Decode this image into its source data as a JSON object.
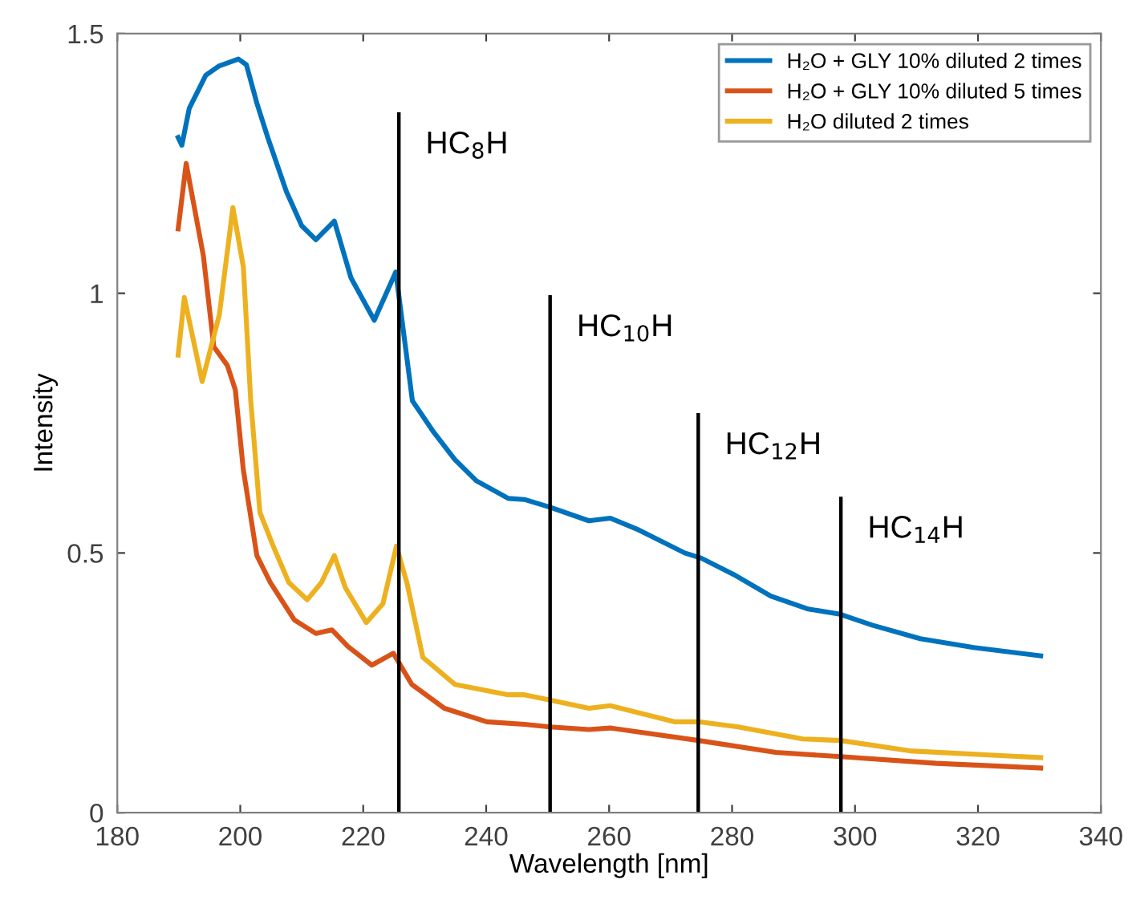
{
  "chart_data": {
    "type": "line",
    "xlabel": "Wavelength [nm]",
    "ylabel": "Intensity",
    "xlim": [
      180,
      340
    ],
    "ylim": [
      0,
      1.5
    ],
    "xticks": [
      180,
      200,
      220,
      240,
      260,
      280,
      300,
      320,
      340
    ],
    "yticks": [
      0,
      0.5,
      1,
      1.5
    ],
    "grid": false,
    "legend": "top right",
    "marker": "none",
    "line_style": "solid",
    "series": [
      {
        "name": "H₂O + GLY 10% diluted 2 times",
        "color": "#0072bd",
        "x": [
          189.9,
          190.5,
          191.7,
          194.4,
          196.6,
          199.7,
          201,
          202.7,
          204.5,
          207.5,
          210,
          212.3,
          215.3,
          218,
          221.8,
          225.3,
          228,
          231.5,
          234.9,
          238.4,
          243.6,
          246.2,
          250.4,
          256.7,
          260.2,
          264.5,
          272.3,
          275,
          280.2,
          286.3,
          292.4,
          297.6,
          302.8,
          310.6,
          319.3,
          330.2
        ],
        "values": [
          1.3,
          1.285,
          1.356,
          1.42,
          1.438,
          1.451,
          1.44,
          1.366,
          1.299,
          1.196,
          1.13,
          1.103,
          1.139,
          1.03,
          0.948,
          1.041,
          0.793,
          0.732,
          0.68,
          0.639,
          0.605,
          0.603,
          0.588,
          0.562,
          0.567,
          0.546,
          0.5,
          0.49,
          0.459,
          0.417,
          0.392,
          0.382,
          0.361,
          0.335,
          0.318,
          0.302
        ]
      },
      {
        "name": "H₂O + GLY 10% diluted 5 times",
        "color": "#d95319",
        "x": [
          189.9,
          191.2,
          194,
          195.7,
          197.9,
          199.2,
          200.5,
          202.7,
          204.9,
          208.8,
          212.3,
          214.9,
          217.5,
          221.4,
          224.9,
          227.9,
          233.2,
          240.1,
          246.2,
          250.4,
          256.7,
          260.2,
          274.5,
          287.1,
          297.6,
          313.2,
          330.2
        ],
        "values": [
          1.124,
          1.25,
          1.072,
          0.897,
          0.861,
          0.814,
          0.66,
          0.495,
          0.443,
          0.371,
          0.345,
          0.352,
          0.32,
          0.284,
          0.307,
          0.247,
          0.201,
          0.175,
          0.17,
          0.165,
          0.16,
          0.163,
          0.139,
          0.116,
          0.108,
          0.095,
          0.086
        ]
      },
      {
        "name": "H₂O diluted 2 times",
        "color": "#edb120",
        "x": [
          189.9,
          190.9,
          193.8,
          196.6,
          198.8,
          200.5,
          201.7,
          203.2,
          205.3,
          207.9,
          210.9,
          213.2,
          215.3,
          217.1,
          220.5,
          223.2,
          225.4,
          227.1,
          229.7,
          234.9,
          243.6,
          246.2,
          250.4,
          256.7,
          260.2,
          270.6,
          274.5,
          281,
          291.5,
          297.6,
          308.9,
          330.2
        ],
        "values": [
          0.881,
          0.992,
          0.83,
          0.959,
          1.165,
          1.051,
          0.794,
          0.578,
          0.515,
          0.443,
          0.41,
          0.443,
          0.495,
          0.433,
          0.366,
          0.402,
          0.513,
          0.443,
          0.299,
          0.247,
          0.227,
          0.227,
          0.217,
          0.201,
          0.206,
          0.175,
          0.175,
          0.165,
          0.142,
          0.139,
          0.119,
          0.106
        ]
      },
      {
        "color": "#000000",
        "x": [
          225.8,
          225.8
        ],
        "values": [
          0,
          1.345
        ]
      },
      {
        "color": "#000000",
        "x": [
          250.4,
          250.4
        ],
        "values": [
          0,
          0.993
        ]
      },
      {
        "color": "#000000",
        "x": [
          274.5,
          274.5
        ],
        "values": [
          0,
          0.766
        ]
      },
      {
        "color": "#000000",
        "x": [
          297.7,
          297.7
        ],
        "values": [
          0,
          0.605
        ]
      }
    ],
    "annotations": [
      {
        "text": "HC$_{8}$H",
        "x": 225.8,
        "y": 1.345
      },
      {
        "text": "HC$_{10}$H",
        "x": 250.4,
        "y": 0.993
      },
      {
        "text": "HC$_{12}$H",
        "x": 274.5,
        "y": 0.766
      },
      {
        "text": "HC$_{14}$H",
        "x": 297.7,
        "y": 0.605
      }
    ]
  }
}
